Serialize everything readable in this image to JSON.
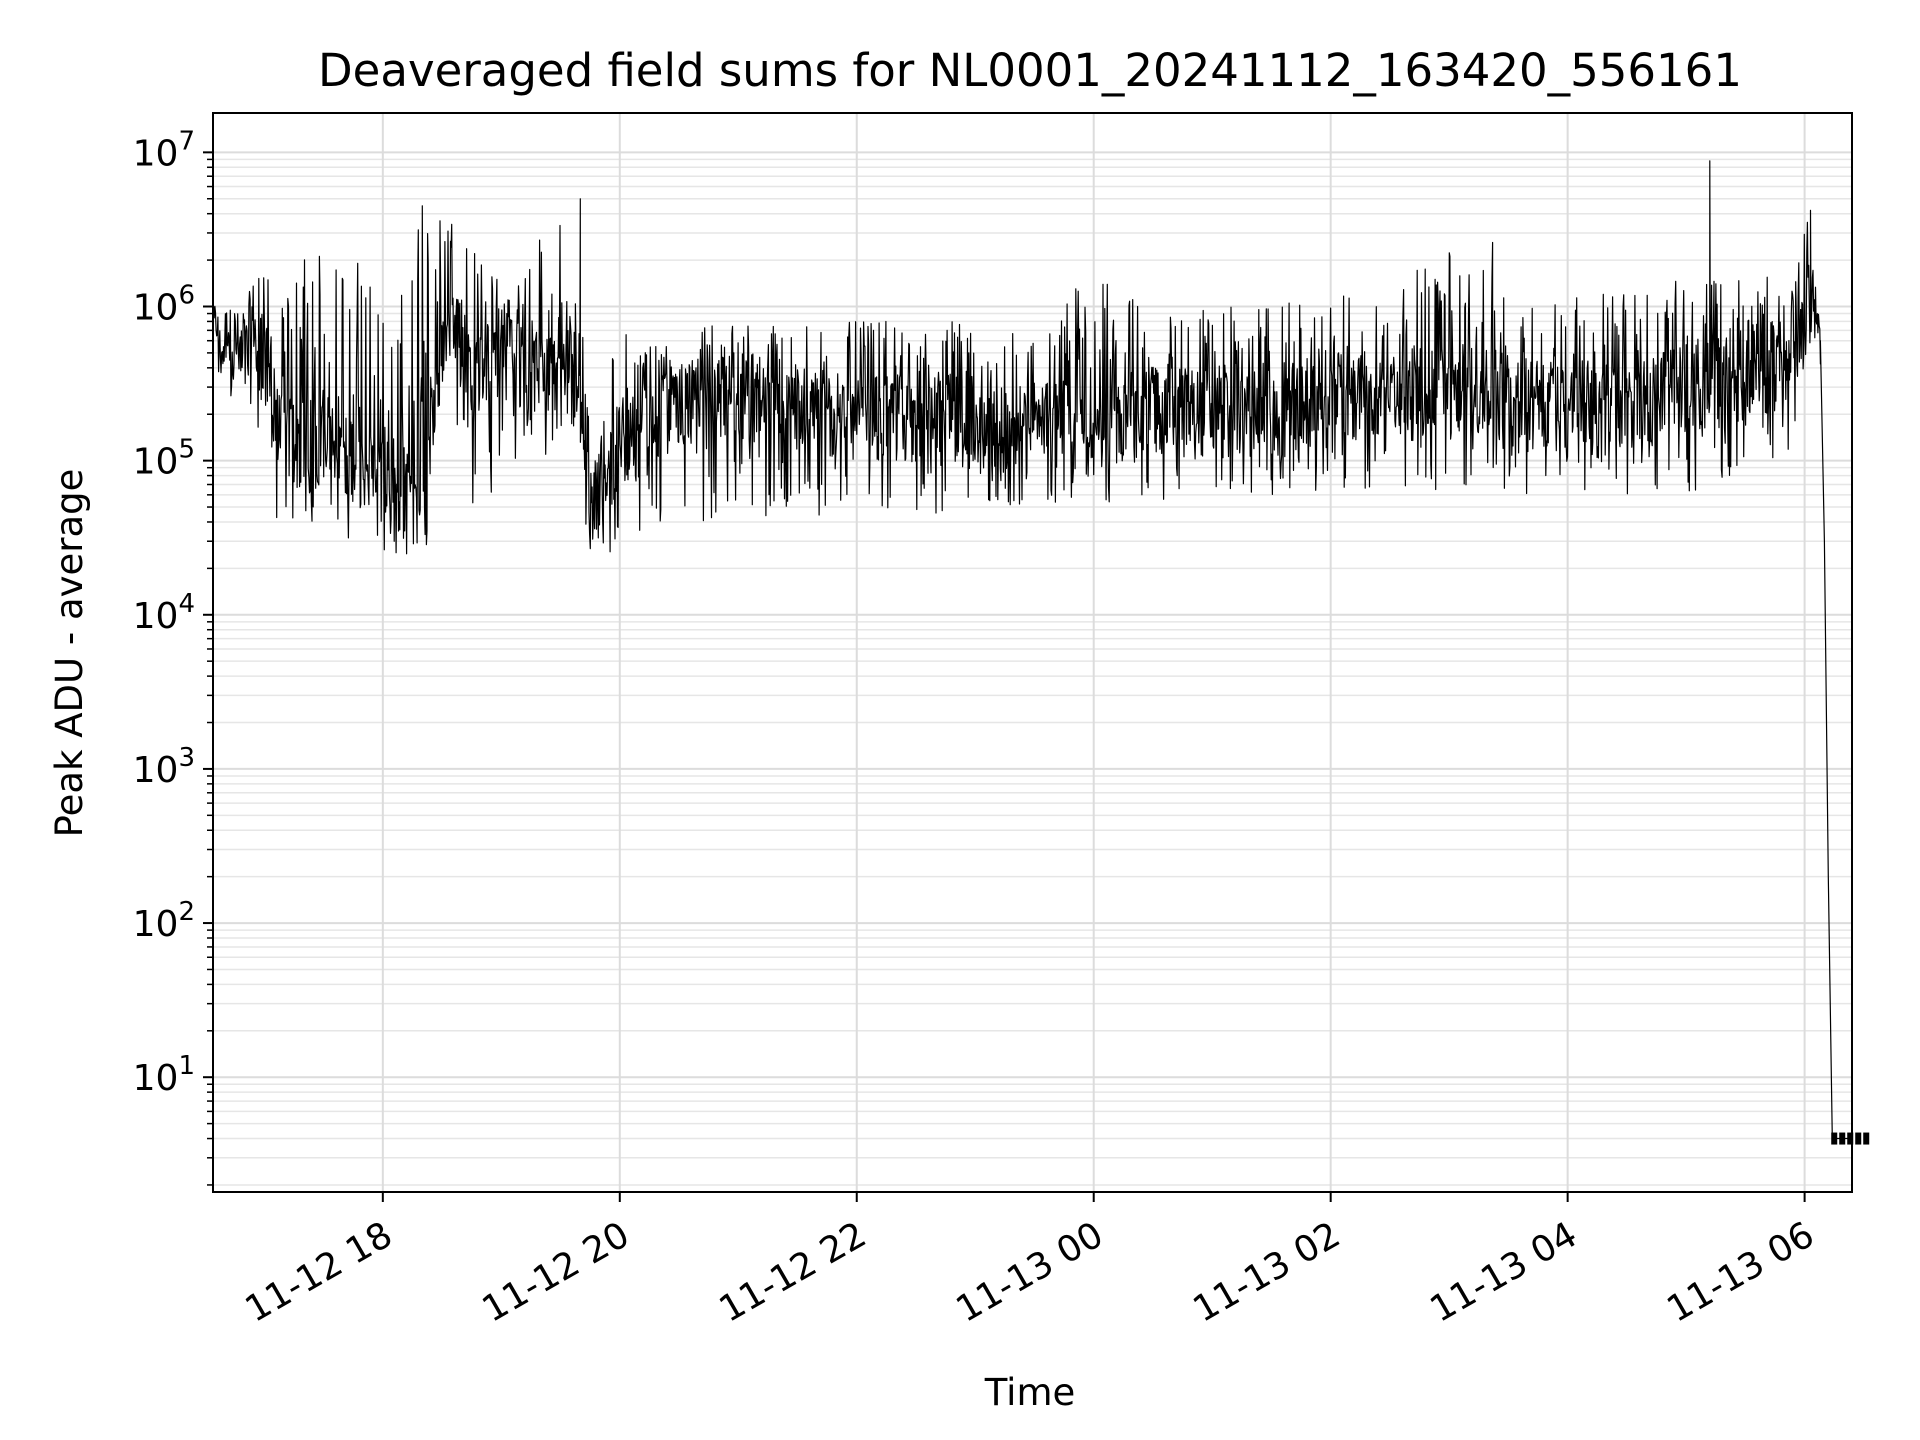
{
  "chart_data": {
    "type": "line",
    "title": "Deaveraged field sums for NL0001_20241112_163420_556161",
    "xlabel": "Time",
    "ylabel": "Peak ADU - average",
    "xlim": [
      "2024-11-12 16:34",
      "2024-11-13 06:24"
    ],
    "ylim": [
      1.8,
      18000000
    ],
    "yscale": "log",
    "grid": true,
    "grid_minor": true,
    "line_color": "#000000",
    "x_ticks": [
      {
        "value": "2024-11-12 18:00",
        "label": "11-12 18"
      },
      {
        "value": "2024-11-12 20:00",
        "label": "11-12 20"
      },
      {
        "value": "2024-11-12 22:00",
        "label": "11-12 22"
      },
      {
        "value": "2024-11-13 00:00",
        "label": "11-13 00"
      },
      {
        "value": "2024-11-13 02:00",
        "label": "11-13 02"
      },
      {
        "value": "2024-11-13 04:00",
        "label": "11-13 04"
      },
      {
        "value": "2024-11-13 06:00",
        "label": "11-13 06"
      }
    ],
    "y_ticks": [
      {
        "value": 10,
        "base": "10",
        "exp": "1"
      },
      {
        "value": 100,
        "base": "10",
        "exp": "2"
      },
      {
        "value": 1000,
        "base": "10",
        "exp": "3"
      },
      {
        "value": 10000,
        "base": "10",
        "exp": "4"
      },
      {
        "value": 100000,
        "base": "10",
        "exp": "5"
      },
      {
        "value": 1000000,
        "base": "10",
        "exp": "6"
      },
      {
        "value": 10000000,
        "base": "10",
        "exp": "7"
      }
    ],
    "series": [
      {
        "x": [
          "2024-11-12 16:34",
          "2024-11-12 16:50",
          "2024-11-12 17:00",
          "2024-11-12 17:05",
          "2024-11-12 17:20",
          "2024-11-12 17:35",
          "2024-11-12 17:50",
          "2024-11-12 18:05",
          "2024-11-12 18:20",
          "2024-11-12 18:35",
          "2024-11-12 18:45",
          "2024-11-12 19:00",
          "2024-11-12 19:15",
          "2024-11-12 19:35",
          "2024-11-12 19:45",
          "2024-11-12 20:00",
          "2024-11-12 20:30",
          "2024-11-12 20:50",
          "2024-11-12 21:30",
          "2024-11-12 22:00",
          "2024-11-12 22:40",
          "2024-11-12 23:10",
          "2024-11-12 23:40",
          "2024-11-12 23:55",
          "2024-11-13 00:30",
          "2024-11-13 01:00",
          "2024-11-13 01:30",
          "2024-11-13 02:00",
          "2024-11-13 02:30",
          "2024-11-13 03:00",
          "2024-11-13 03:30",
          "2024-11-13 04:00",
          "2024-11-13 04:30",
          "2024-11-13 05:00",
          "2024-11-13 05:30",
          "2024-11-13 05:55",
          "2024-11-13 06:02",
          "2024-11-13 06:05",
          "2024-11-13 06:08",
          "2024-11-13 06:10",
          "2024-11-13 06:12",
          "2024-11-13 06:14",
          "2024-11-13 06:15",
          "2024-11-13 06:24"
        ],
        "values": [
          600000,
          450000,
          500000,
          150000,
          120000,
          150000,
          90000,
          70000,
          80000,
          1000000,
          400000,
          500000,
          350000,
          600000,
          60000,
          120000,
          250000,
          300000,
          200000,
          180000,
          200000,
          150000,
          180000,
          140000,
          220000,
          200000,
          200000,
          250000,
          250000,
          300000,
          280000,
          220000,
          250000,
          300000,
          320000,
          500000,
          1000000,
          900000,
          600000,
          30000,
          200,
          4,
          4,
          4
        ],
        "envelope_high": [
          1000000,
          1000000,
          2500000,
          700000,
          2500000,
          2000000,
          2500000,
          800000,
          4500000,
          4000000,
          2500000,
          1500000,
          2500000,
          5000000,
          200000,
          700000,
          700000,
          800000,
          800000,
          800000,
          800000,
          800000,
          800000,
          1700000,
          1000000,
          1000000,
          1000000,
          1200000,
          1300000,
          2500000,
          1300000,
          1300000,
          1300000,
          1500000,
          1600000,
          1500000,
          4000000,
          1000000,
          700000,
          30000,
          200,
          4,
          4,
          4
        ],
        "envelope_low": [
          350000,
          350000,
          60000,
          40000,
          30000,
          30000,
          30000,
          25000,
          20000,
          40000,
          30000,
          80000,
          80000,
          150000,
          25000,
          25000,
          40000,
          40000,
          40000,
          45000,
          45000,
          50000,
          50000,
          45000,
          55000,
          60000,
          60000,
          65000,
          60000,
          60000,
          60000,
          60000,
          60000,
          60000,
          60000,
          60000,
          800000,
          800000,
          600000,
          30000,
          200,
          4,
          4,
          4
        ],
        "spikes": [
          {
            "x": "2024-11-12 18:20",
            "value": 4500000
          },
          {
            "x": "2024-11-12 19:40",
            "value": 5000000
          },
          {
            "x": "2024-11-13 03:22",
            "value": 2600000
          },
          {
            "x": "2024-11-13 05:12",
            "value": 8800000
          },
          {
            "x": "2024-11-13 06:03",
            "value": 4200000
          }
        ]
      }
    ]
  }
}
